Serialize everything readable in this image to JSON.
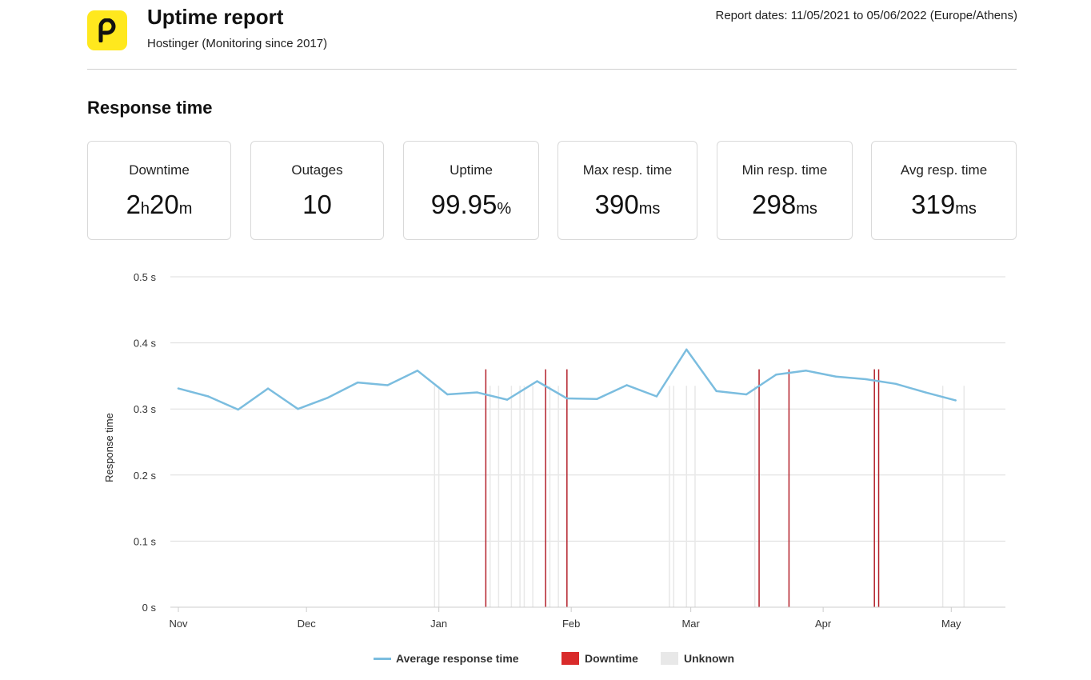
{
  "header": {
    "title": "Uptime report",
    "subtitle": "Hostinger (Monitoring since 2017)",
    "report_dates": "Report dates: 11/05/2021 to 05/06/2022 (Europe/Athens)",
    "logo_icon": "hostinger-p-logo",
    "logo_color": "#ffe81e"
  },
  "section_title": "Response time",
  "stats": [
    {
      "label": "Downtime",
      "value_parts": [
        "2",
        "h",
        "20",
        "m"
      ]
    },
    {
      "label": "Outages",
      "value_parts": [
        "10"
      ]
    },
    {
      "label": "Uptime",
      "value_parts": [
        "99.95",
        "%"
      ]
    },
    {
      "label": "Max resp. time",
      "value_parts": [
        "390",
        "ms"
      ]
    },
    {
      "label": "Min resp. time",
      "value_parts": [
        "298",
        "ms"
      ]
    },
    {
      "label": "Avg resp. time",
      "value_parts": [
        "319",
        "ms"
      ]
    }
  ],
  "chart_data": {
    "type": "line",
    "ylabel": "Response time",
    "ylim": [
      0,
      0.5
    ],
    "y_ticks": [
      {
        "value": 0,
        "label": "0 s"
      },
      {
        "value": 0.1,
        "label": "0.1 s"
      },
      {
        "value": 0.2,
        "label": "0.2 s"
      },
      {
        "value": 0.3,
        "label": "0.3 s"
      },
      {
        "value": 0.4,
        "label": "0.4 s"
      },
      {
        "value": 0.5,
        "label": "0.5 s"
      }
    ],
    "xlim": [
      "2021-11-01",
      "2022-05-09"
    ],
    "x_ticks": [
      {
        "value": "2021-11-01",
        "label": "Nov"
      },
      {
        "value": "2021-12-01",
        "label": "Dec"
      },
      {
        "value": "2022-01-01",
        "label": "Jan"
      },
      {
        "value": "2022-02-01",
        "label": "Feb"
      },
      {
        "value": "2022-03-01",
        "label": "Mar"
      },
      {
        "value": "2022-04-01",
        "label": "Apr"
      },
      {
        "value": "2022-05-01",
        "label": "May"
      }
    ],
    "grid": true,
    "legend_position": "bottom",
    "series": [
      {
        "name": "Average response time",
        "color": "#7bbddf",
        "points": [
          [
            "2021-11-01",
            0.331
          ],
          [
            "2021-11-08",
            0.319
          ],
          [
            "2021-11-15",
            0.299
          ],
          [
            "2021-11-22",
            0.331
          ],
          [
            "2021-11-29",
            0.3
          ],
          [
            "2021-12-06",
            0.317
          ],
          [
            "2021-12-13",
            0.34
          ],
          [
            "2021-12-20",
            0.336
          ],
          [
            "2021-12-27",
            0.358
          ],
          [
            "2022-01-03",
            0.322
          ],
          [
            "2022-01-10",
            0.325
          ],
          [
            "2022-01-17",
            0.314
          ],
          [
            "2022-01-24",
            0.342
          ],
          [
            "2022-01-31",
            0.316
          ],
          [
            "2022-02-07",
            0.315
          ],
          [
            "2022-02-14",
            0.336
          ],
          [
            "2022-02-21",
            0.319
          ],
          [
            "2022-02-28",
            0.39
          ],
          [
            "2022-03-07",
            0.327
          ],
          [
            "2022-03-14",
            0.322
          ],
          [
            "2022-03-21",
            0.352
          ],
          [
            "2022-03-28",
            0.358
          ],
          [
            "2022-04-04",
            0.349
          ],
          [
            "2022-04-11",
            0.345
          ],
          [
            "2022-04-18",
            0.338
          ],
          [
            "2022-04-25",
            0.325
          ],
          [
            "2022-05-02",
            0.313
          ]
        ]
      }
    ],
    "downtime_events": [
      "2022-01-12",
      "2022-01-26",
      "2022-01-31",
      "2022-03-17",
      "2022-03-24",
      "2022-04-13",
      "2022-04-14"
    ],
    "unknown_events": [
      "2021-12-31",
      "2022-01-01",
      "2022-01-13",
      "2022-01-15",
      "2022-01-18",
      "2022-01-20",
      "2022-01-21",
      "2022-01-23",
      "2022-01-27",
      "2022-01-29",
      "2022-02-24",
      "2022-02-25",
      "2022-02-28",
      "2022-03-02",
      "2022-03-16",
      "2022-04-29",
      "2022-05-04"
    ],
    "legend": {
      "line": "Average response time",
      "downtime": "Downtime",
      "unknown": "Unknown"
    },
    "colors": {
      "line": "#7bbddf",
      "downtime": "#b3202a",
      "downtime_swatch": "#d92b2b",
      "unknown": "#e8e8e8",
      "grid": "#dddddd"
    }
  }
}
